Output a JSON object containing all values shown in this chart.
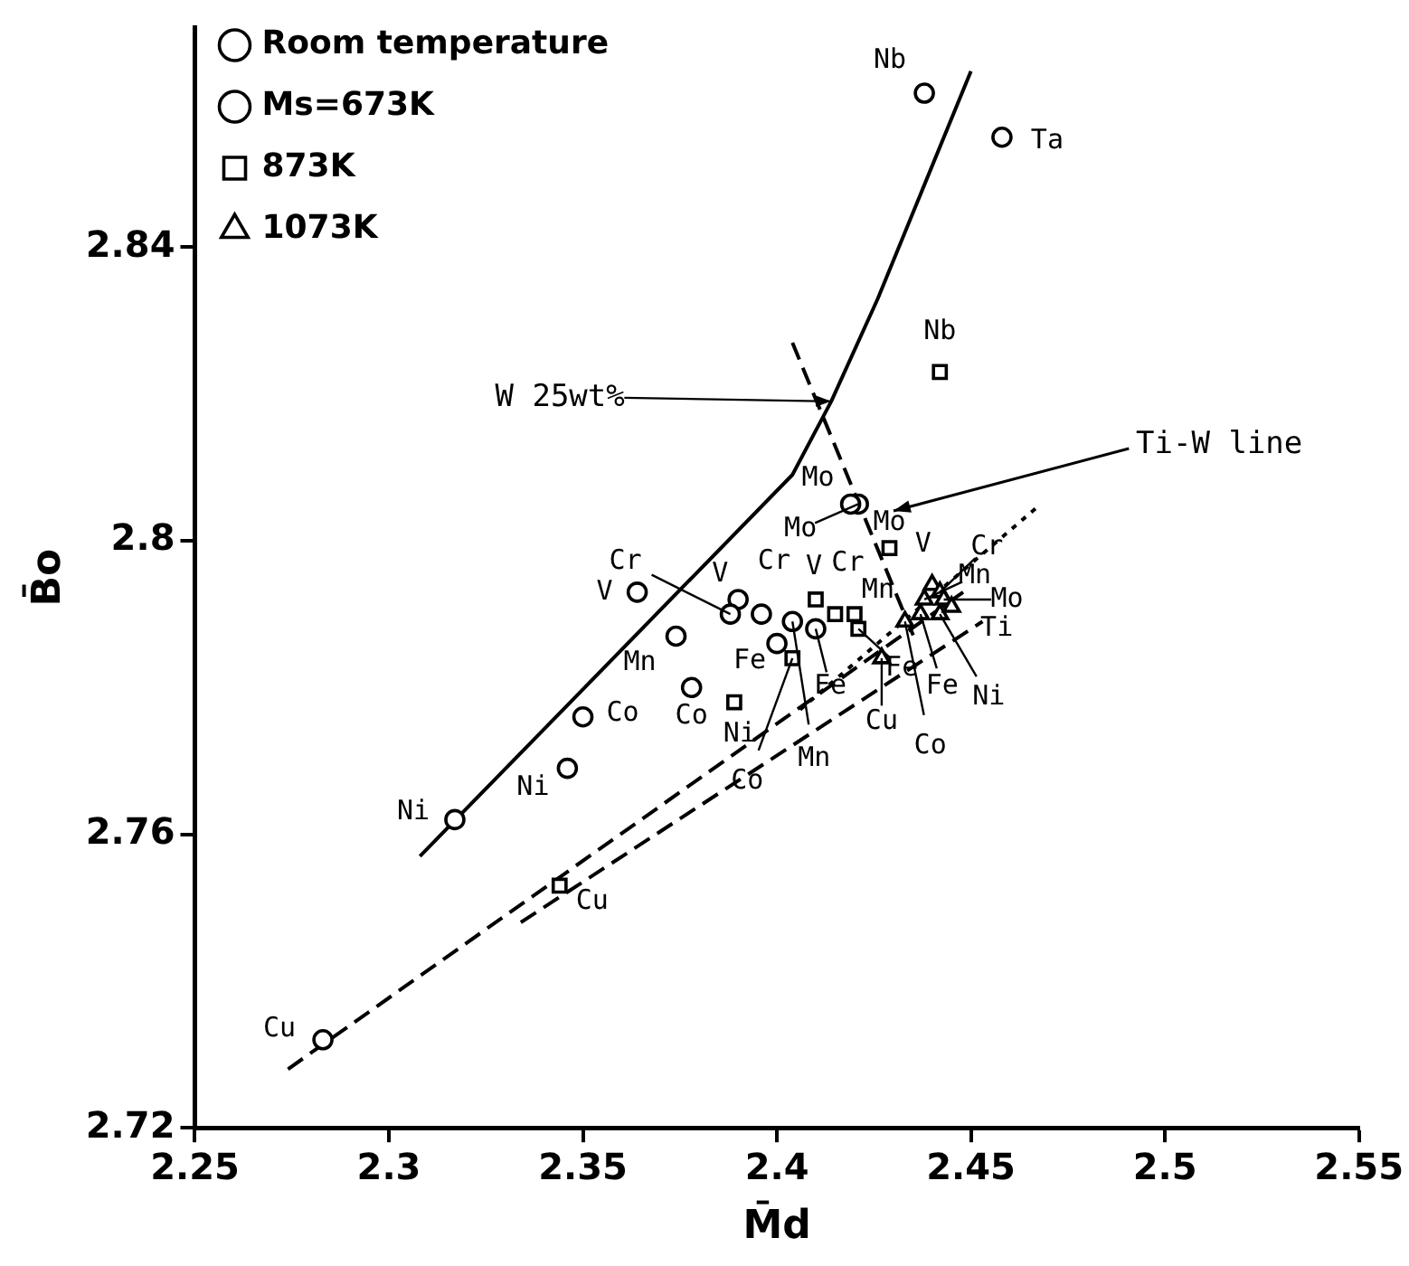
{
  "chart_data": {
    "type": "scatter",
    "xlabel": "M̄d",
    "ylabel": "B̄o",
    "xlim": [
      2.25,
      2.55
    ],
    "xticks": [
      2.25,
      2.3,
      2.35,
      2.4,
      2.45,
      2.5,
      2.55
    ],
    "ylim": [
      2.72,
      2.87
    ],
    "yticks": [
      2.72,
      2.76,
      2.8,
      2.84
    ],
    "grid": false,
    "legend": "top left",
    "series": [
      {
        "name": "Room temperature",
        "marker": "circle",
        "color": "#000000",
        "x": [
          2.317,
          2.35,
          2.374,
          2.364,
          2.388,
          2.4,
          2.419,
          2.438,
          2.458
        ],
        "values": [
          2.762,
          2.776,
          2.787,
          2.793,
          2.79,
          2.786,
          2.805,
          2.861,
          2.855
        ],
        "value_labels": [
          "Ni",
          "Co",
          "Mn",
          "V",
          "Cr",
          "Fe",
          "Mo",
          "Nb",
          "Ta"
        ]
      },
      {
        "name": "Ms=673K",
        "marker": "circle",
        "color": "#000000",
        "x": [
          2.283,
          2.346,
          2.378,
          2.39,
          2.396,
          2.404,
          2.41,
          2.421
        ],
        "values": [
          2.732,
          2.769,
          2.78,
          2.792,
          2.79,
          2.789,
          2.788,
          2.805
        ],
        "value_labels": [
          "Cu",
          "Ni",
          "Co",
          "V",
          "Cr",
          "Mn",
          "Fe",
          "Mo"
        ]
      },
      {
        "name": "873K",
        "marker": "square",
        "color": "#000000",
        "x": [
          2.344,
          2.389,
          2.404,
          2.41,
          2.415,
          2.42,
          2.421,
          2.429,
          2.442
        ],
        "values": [
          2.753,
          2.778,
          2.784,
          2.792,
          2.79,
          2.79,
          2.788,
          2.799,
          2.823
        ],
        "value_labels": [
          "Cu",
          "Ni",
          "Co",
          "V",
          "Cr",
          "Mn",
          "Fe",
          "Mo",
          "Nb"
        ]
      },
      {
        "name": "1073K",
        "marker": "triangle",
        "color": "#000000",
        "x": [
          2.427,
          2.433,
          2.437,
          2.442,
          2.438,
          2.44,
          2.442,
          2.443,
          2.445
        ],
        "values": [
          2.784,
          2.789,
          2.79,
          2.79,
          2.792,
          2.794,
          2.793,
          2.792,
          2.791
        ],
        "value_labels": [
          "Cu",
          "Co",
          "Fe",
          "Ni",
          "Mn",
          "V",
          "Cr",
          "Mo",
          "Ti"
        ]
      },
      {
        "type": "line",
        "line_style": "solid",
        "color": "#000000",
        "x": [
          2.308,
          2.404,
          2.414,
          2.426,
          2.45
        ],
        "values": [
          2.757,
          2.809,
          2.819,
          2.833,
          2.864
        ]
      },
      {
        "type": "line",
        "line_style": "dashed",
        "color": "#000000",
        "x": [
          2.274,
          2.448
        ],
        "values": [
          2.728,
          2.793
        ]
      },
      {
        "type": "line",
        "line_style": "dashed",
        "color": "#000000",
        "x": [
          2.334,
          2.453
        ],
        "values": [
          2.748,
          2.789
        ]
      },
      {
        "type": "line",
        "line_style": "dotted",
        "color": "#000000",
        "x": [
          2.406,
          2.468
        ],
        "values": [
          2.777,
          2.805
        ]
      },
      {
        "type": "line",
        "line_style": "dashed",
        "color": "#000000",
        "x": [
          2.404,
          2.436
        ],
        "values": [
          2.827,
          2.786
        ]
      }
    ],
    "annotations": [
      {
        "text": "W 25wt%",
        "x": 2.414,
        "y": 2.819
      },
      "Ti-W line"
    ]
  }
}
